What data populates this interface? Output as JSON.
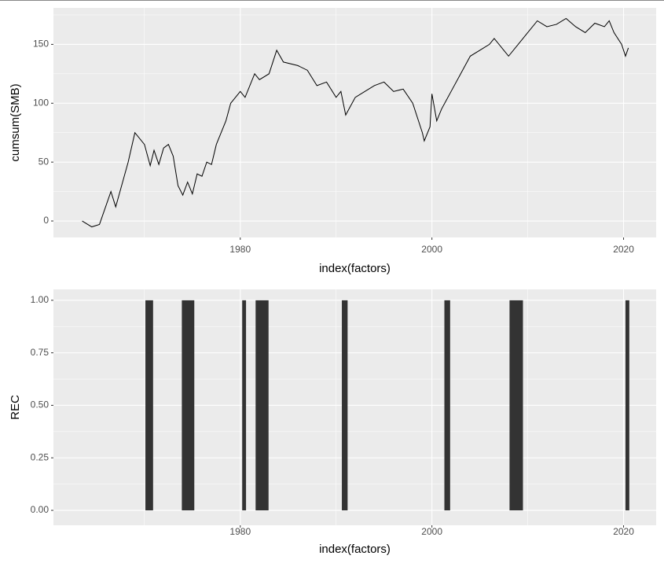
{
  "chart_data": [
    {
      "type": "line",
      "x_label": "index(factors)",
      "y_label": "cumsum(SMB)",
      "color": "#000000",
      "x": [
        1963.5,
        1964.5,
        1965.3,
        1966.5,
        1967,
        1968.3,
        1969,
        1970,
        1970.6,
        1971,
        1971.5,
        1972,
        1972.5,
        1973,
        1973.5,
        1974,
        1974.5,
        1975,
        1975.5,
        1976,
        1976.5,
        1977,
        1977.5,
        1978.5,
        1979,
        1980,
        1980.5,
        1981.5,
        1982,
        1983,
        1983.8,
        1984.5,
        1986,
        1987,
        1988,
        1989,
        1990,
        1990.5,
        1991,
        1992,
        1993,
        1994,
        1995,
        1996,
        1997,
        1998,
        1999,
        1999.2,
        1999.8,
        2000,
        2000.5,
        2001,
        2002,
        2003,
        2004,
        2005,
        2006,
        2006.5,
        2007.5,
        2008,
        2009,
        2010,
        2011,
        2012,
        2013,
        2014,
        2015,
        2016,
        2017,
        2018,
        2018.5,
        2019,
        2019.8,
        2020.2,
        2020.5
      ],
      "values": [
        0,
        -5,
        -3,
        25,
        12,
        50,
        75,
        65,
        47,
        60,
        48,
        62,
        65,
        55,
        30,
        22,
        33,
        23,
        40,
        38,
        50,
        48,
        65,
        85,
        100,
        110,
        105,
        125,
        120,
        125,
        145,
        135,
        132,
        128,
        115,
        118,
        105,
        110,
        90,
        105,
        110,
        115,
        118,
        110,
        112,
        100,
        75,
        68,
        80,
        108,
        85,
        95,
        110,
        125,
        140,
        145,
        150,
        155,
        145,
        140,
        150,
        160,
        170,
        165,
        167,
        172,
        165,
        160,
        168,
        165,
        170,
        160,
        150,
        140,
        147
      ],
      "xlim": [
        1960.5,
        2023.4
      ],
      "xticks": [
        1980,
        2000,
        2020
      ],
      "ylim": [
        -14,
        181
      ],
      "yticks": [
        0,
        50,
        100,
        150
      ],
      "grid": true
    },
    {
      "type": "bar",
      "x_label": "index(factors)",
      "y_label": "REC",
      "color": "#333333",
      "intervals": [
        [
          1970.1,
          1970.9
        ],
        [
          1973.9,
          1975.2
        ],
        [
          1980.2,
          1980.6
        ],
        [
          1981.6,
          1982.95
        ],
        [
          1990.6,
          1991.2
        ],
        [
          2001.3,
          2001.9
        ],
        [
          2008.1,
          2009.5
        ],
        [
          2020.2,
          2020.6
        ]
      ],
      "values": [
        1,
        1,
        1,
        1,
        1,
        1,
        1,
        1
      ],
      "xlim": [
        1960.5,
        2023.4
      ],
      "xticks": [
        1980,
        2000,
        2020
      ],
      "ylim": [
        -0.071,
        1.052
      ],
      "yticks": [
        {
          "value": 0,
          "label": "0.00"
        },
        {
          "value": 0.25,
          "label": "0.25"
        },
        {
          "value": 0.5,
          "label": "0.50"
        },
        {
          "value": 0.75,
          "label": "0.75"
        },
        {
          "value": 1,
          "label": "1.00"
        }
      ],
      "grid": true
    }
  ]
}
